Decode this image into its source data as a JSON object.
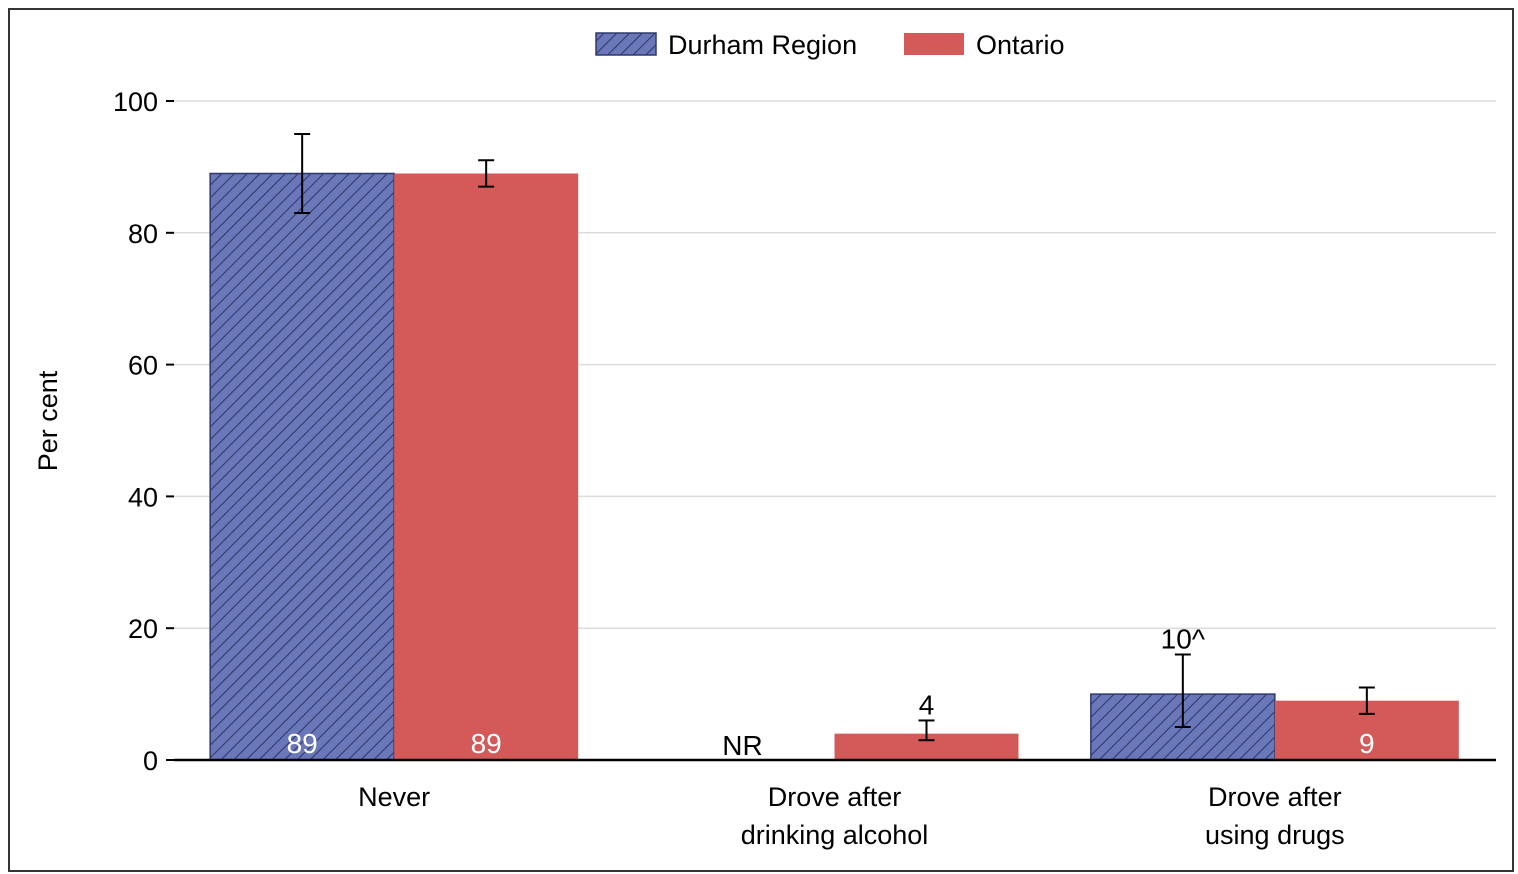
{
  "chart_data": {
    "type": "bar",
    "title": "",
    "ylabel": "Per cent",
    "xlabel": "",
    "ylim": [
      0,
      100
    ],
    "yticks": [
      0,
      20,
      40,
      60,
      80,
      100
    ],
    "grid": true,
    "legend_position": "top-center",
    "categories": [
      [
        "Never"
      ],
      [
        "Drove after",
        "drinking alcohol"
      ],
      [
        "Drove after",
        "using drugs"
      ]
    ],
    "series": [
      {
        "name": "Durham Region",
        "color": "#6a78b9",
        "pattern": "diagonal-hatch",
        "values": [
          89,
          null,
          10
        ],
        "error_low": [
          83,
          null,
          5
        ],
        "error_high": [
          95,
          null,
          16
        ],
        "labels": [
          "89",
          "NR",
          "10^"
        ],
        "label_positions": [
          "inside",
          "baseline",
          "above"
        ]
      },
      {
        "name": "Ontario",
        "color": "#d45a5a",
        "pattern": "solid",
        "values": [
          89,
          4,
          9
        ],
        "error_low": [
          87,
          3,
          7
        ],
        "error_high": [
          91,
          6,
          11
        ],
        "labels": [
          "89",
          "4",
          "9"
        ],
        "label_positions": [
          "inside",
          "above",
          "inside"
        ]
      }
    ]
  }
}
